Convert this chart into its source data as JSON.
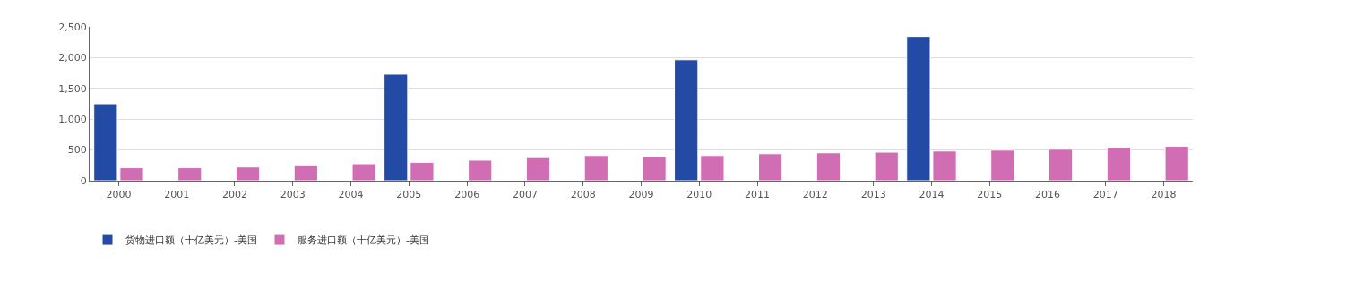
{
  "chart_data": {
    "type": "bar",
    "categories": [
      "2000",
      "2001",
      "2002",
      "2003",
      "2004",
      "2005",
      "2006",
      "2007",
      "2008",
      "2009",
      "2010",
      "2011",
      "2012",
      "2013",
      "2014",
      "2015",
      "2016",
      "2017",
      "2018"
    ],
    "series": [
      {
        "name": "货物进口额（十亿美元）-美国",
        "color": "#234aa5",
        "values": [
          1250,
          null,
          null,
          null,
          null,
          1730,
          null,
          null,
          null,
          null,
          1965,
          null,
          null,
          null,
          2345,
          null,
          null,
          null,
          null
        ]
      },
      {
        "name": "服务进口额（十亿美元）-美国",
        "color": "#d16eb3",
        "values": [
          210,
          210,
          222,
          243,
          276,
          300,
          335,
          376,
          410,
          391,
          410,
          439,
          454,
          465,
          483,
          497,
          512,
          545,
          560
        ]
      }
    ],
    "ylim": [
      0,
      2500
    ],
    "yticks": [
      {
        "value": 0,
        "label": "0"
      },
      {
        "value": 500,
        "label": "500"
      },
      {
        "value": 1000,
        "label": "1,000"
      },
      {
        "value": 1500,
        "label": "1,500"
      },
      {
        "value": 2000,
        "label": "2,000"
      },
      {
        "value": 2500,
        "label": "2,500"
      }
    ],
    "grid": "y",
    "legend": "bottom left"
  }
}
